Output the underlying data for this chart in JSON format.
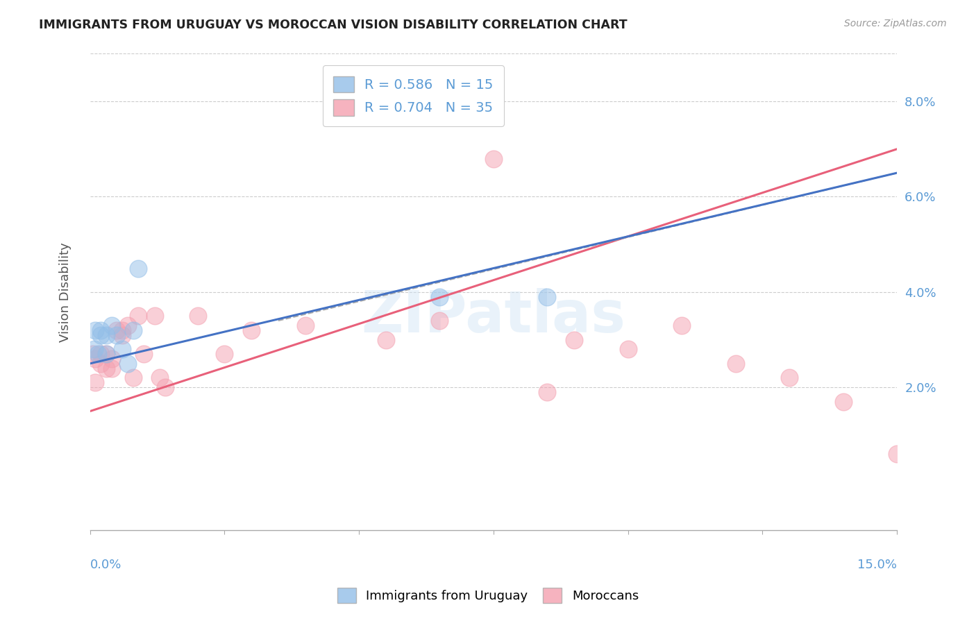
{
  "title": "IMMIGRANTS FROM URUGUAY VS MOROCCAN VISION DISABILITY CORRELATION CHART",
  "source": "Source: ZipAtlas.com",
  "ylabel": "Vision Disability",
  "yticks": [
    0.02,
    0.04,
    0.06,
    0.08
  ],
  "ytick_labels": [
    "2.0%",
    "4.0%",
    "6.0%",
    "8.0%"
  ],
  "xlim": [
    0.0,
    0.15
  ],
  "ylim": [
    -0.01,
    0.09
  ],
  "watermark": "ZIPatlas",
  "legend_r1": "R = 0.586",
  "legend_n1": "N = 15",
  "legend_r2": "R = 0.704",
  "legend_n2": "N = 35",
  "blue_color": "#92BEE8",
  "pink_color": "#F4A0B0",
  "blue_line_color": "#4472C4",
  "pink_line_color": "#E8607A",
  "dashed_line_color": "#AAAAAA",
  "uruguay_x": [
    0.0008,
    0.001,
    0.0015,
    0.002,
    0.002,
    0.003,
    0.003,
    0.004,
    0.005,
    0.006,
    0.007,
    0.008,
    0.009,
    0.065,
    0.085
  ],
  "uruguay_y": [
    0.028,
    0.032,
    0.027,
    0.032,
    0.031,
    0.031,
    0.027,
    0.033,
    0.031,
    0.028,
    0.025,
    0.032,
    0.045,
    0.039,
    0.039
  ],
  "moroccan_x": [
    0.0005,
    0.001,
    0.001,
    0.002,
    0.002,
    0.003,
    0.003,
    0.004,
    0.004,
    0.005,
    0.006,
    0.006,
    0.007,
    0.008,
    0.009,
    0.01,
    0.012,
    0.013,
    0.014,
    0.02,
    0.025,
    0.03,
    0.04,
    0.055,
    0.065,
    0.07,
    0.075,
    0.085,
    0.09,
    0.1,
    0.11,
    0.12,
    0.13,
    0.14,
    0.15
  ],
  "moroccan_y": [
    0.027,
    0.021,
    0.026,
    0.025,
    0.027,
    0.024,
    0.027,
    0.026,
    0.024,
    0.032,
    0.032,
    0.031,
    0.033,
    0.022,
    0.035,
    0.027,
    0.035,
    0.022,
    0.02,
    0.035,
    0.027,
    0.032,
    0.033,
    0.03,
    0.034,
    0.077,
    0.068,
    0.019,
    0.03,
    0.028,
    0.033,
    0.025,
    0.022,
    0.017,
    0.006
  ],
  "blue_line_x": [
    0.0,
    0.15
  ],
  "blue_line_y": [
    0.025,
    0.065
  ],
  "pink_line_x": [
    0.0,
    0.15
  ],
  "pink_line_y": [
    0.015,
    0.07
  ],
  "dash_line_x": [
    0.035,
    0.15
  ],
  "dash_line_y": [
    0.034,
    0.065
  ]
}
